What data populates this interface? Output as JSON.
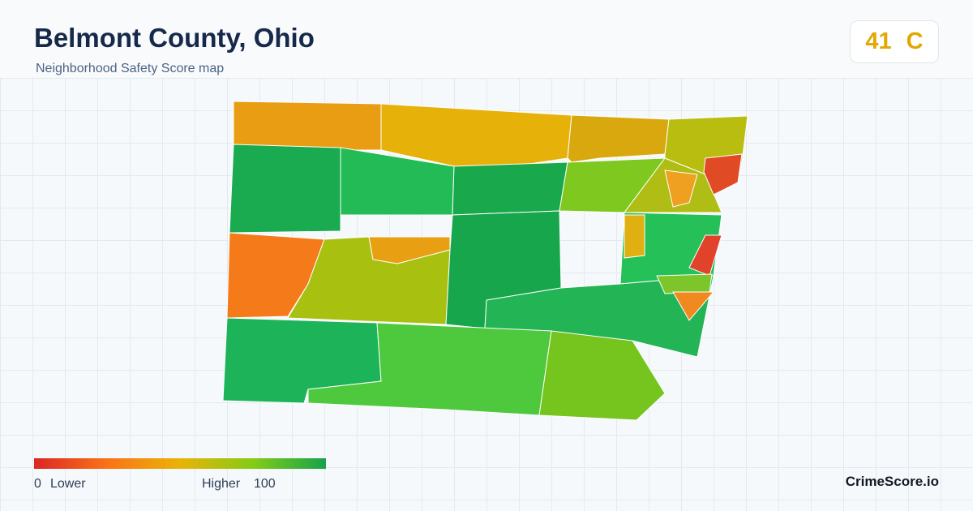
{
  "header": {
    "title": "Belmont County, Ohio",
    "subtitle": "Neighborhood Safety Score map"
  },
  "score": {
    "value": 41,
    "grade": "C"
  },
  "legend": {
    "min": 0,
    "min_label": "Lower",
    "max_label": "Higher",
    "max": 100
  },
  "brand": "CrimeScore.io"
}
